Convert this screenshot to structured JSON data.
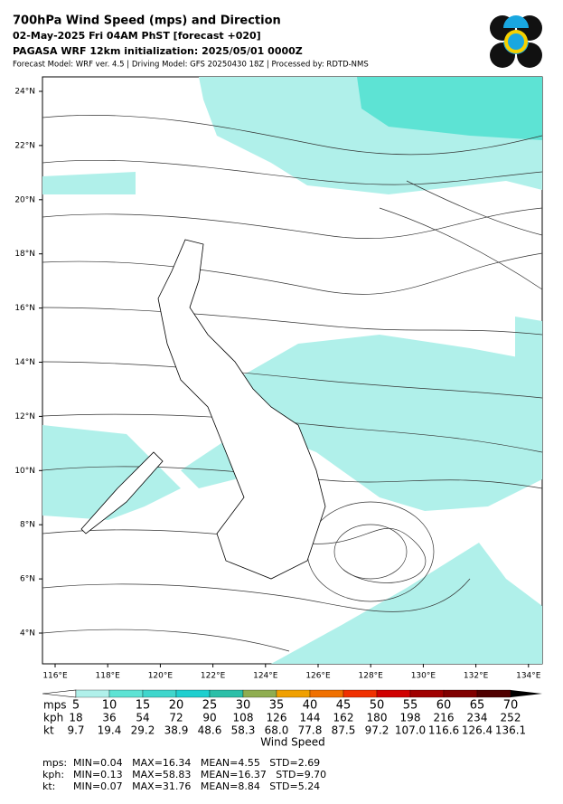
{
  "header": {
    "title": "700hPa Wind Speed (mps) and Direction",
    "line2": "02-May-2025 Fri 04AM PhST [forecast +020]",
    "line3": "PAGASA WRF 12km initialization: 2025/05/01 0000Z",
    "line4": "Forecast Model: WRF ver. 4.5 | Driving Model: GFS 20250430 18Z | Processed by: RDTD-NMS"
  },
  "map": {
    "lat_labels": [
      "24°N",
      "22°N",
      "20°N",
      "18°N",
      "16°N",
      "14°N",
      "12°N",
      "10°N",
      "8°N",
      "6°N",
      "4°N"
    ],
    "lon_labels": [
      "116°E",
      "118°E",
      "120°E",
      "122°E",
      "124°E",
      "126°E",
      "128°E",
      "130°E",
      "132°E",
      "134°E"
    ]
  },
  "colorbar": {
    "title": "Wind Speed",
    "colors": [
      "#ffffff",
      "#b0f0ea",
      "#5de3d4",
      "#3fd6cc",
      "#1ecfcf",
      "#2bbfa8",
      "#8fad50",
      "#f0a000",
      "#f07000",
      "#f03000",
      "#d00000",
      "#a00000",
      "#800000",
      "#500000",
      "#000000"
    ],
    "rows": [
      {
        "unit": "mps",
        "labels": [
          "5",
          "10",
          "15",
          "20",
          "25",
          "30",
          "35",
          "40",
          "45",
          "50",
          "55",
          "60",
          "65",
          "70"
        ]
      },
      {
        "unit": "kph",
        "labels": [
          "18",
          "36",
          "54",
          "72",
          "90",
          "108",
          "126",
          "144",
          "162",
          "180",
          "198",
          "216",
          "234",
          "252"
        ]
      },
      {
        "unit": "kt",
        "labels": [
          "9.7",
          "19.4",
          "29.2",
          "38.9",
          "48.6",
          "58.3",
          "68.0",
          "77.8",
          "87.5",
          "97.2",
          "107.0",
          "116.6",
          "126.4",
          "136.1"
        ]
      }
    ]
  },
  "stats": [
    {
      "unit": "mps:",
      "text": "MIN=0.04   MAX=16.34   MEAN=4.55   STD=2.69"
    },
    {
      "unit": "kph:",
      "text": "MIN=0.13   MAX=58.83   MEAN=16.37   STD=9.70"
    },
    {
      "unit": "kt:",
      "text": "MIN=0.07   MAX=31.76   MEAN=8.84   STD=5.24"
    }
  ]
}
